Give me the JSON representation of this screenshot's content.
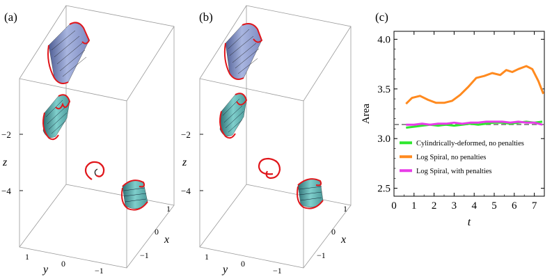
{
  "panels": {
    "a": {
      "label": "(a)",
      "axes": {
        "x": "x",
        "y": "y",
        "z": "z"
      },
      "ticks": {
        "z": [
          "−2",
          "−4"
        ],
        "x": [
          "1",
          "0",
          "−1"
        ],
        "y": [
          "1",
          "0",
          "−1"
        ]
      }
    },
    "b": {
      "label": "(b)",
      "axes": {
        "x": "x",
        "y": "y",
        "z": "z"
      },
      "ticks": {
        "z": [
          "−2",
          "−4"
        ],
        "x": [
          "1",
          "0",
          "−1"
        ],
        "y": [
          "1",
          "0",
          "−1"
        ]
      }
    },
    "c": {
      "label": "(c)"
    }
  },
  "colors": {
    "surface_blue": "#a9b6e0",
    "surface_teal": "#76c6c4",
    "boundary_red": "#e0161b",
    "green": "#2ee82e",
    "orange": "#ff8a1f",
    "magenta": "#e83ce8",
    "reference_dash": "#777777"
  },
  "chart_data": {
    "type": "line",
    "xlabel": "t",
    "ylabel": "Area",
    "xlim": [
      0,
      7.5
    ],
    "ylim": [
      2.42,
      4.08
    ],
    "xticks": [
      0,
      1,
      2,
      3,
      4,
      5,
      6,
      7
    ],
    "yticks": [
      2.5,
      3.0,
      3.5,
      4.0
    ],
    "ytick_labels": [
      "2.5",
      "3.0",
      "3.5",
      "4.0"
    ],
    "reference_line": 3.14159,
    "legend_position": "bottom-left",
    "series": [
      {
        "name": "Cylindrically-deformed, no penalties",
        "color": "#2ee82e",
        "x": [
          0.6,
          1.0,
          1.4,
          1.8,
          2.2,
          2.6,
          3.0,
          3.4,
          3.8,
          4.2,
          4.6,
          5.0,
          5.4,
          5.8,
          6.2,
          6.6,
          7.0,
          7.4
        ],
        "y": [
          3.11,
          3.12,
          3.13,
          3.14,
          3.13,
          3.14,
          3.13,
          3.14,
          3.15,
          3.14,
          3.15,
          3.16,
          3.16,
          3.15,
          3.16,
          3.17,
          3.16,
          3.17
        ]
      },
      {
        "name": "Log Spiral, no penalties",
        "color": "#ff8a1f",
        "x": [
          0.6,
          0.9,
          1.3,
          1.7,
          2.1,
          2.5,
          2.9,
          3.3,
          3.7,
          4.1,
          4.5,
          4.9,
          5.3,
          5.6,
          5.9,
          6.2,
          6.6,
          6.9,
          7.2,
          7.45
        ],
        "y": [
          3.35,
          3.41,
          3.43,
          3.39,
          3.36,
          3.36,
          3.38,
          3.44,
          3.52,
          3.61,
          3.63,
          3.66,
          3.64,
          3.69,
          3.67,
          3.7,
          3.73,
          3.7,
          3.58,
          3.45
        ]
      },
      {
        "name": "Log Spiral, with penalties",
        "color": "#e83ce8",
        "x": [
          0.6,
          1.0,
          1.4,
          1.8,
          2.2,
          2.6,
          3.0,
          3.4,
          3.8,
          4.2,
          4.6,
          5.0,
          5.4,
          5.8,
          6.2,
          6.6,
          7.0,
          7.4
        ],
        "y": [
          3.14,
          3.14,
          3.15,
          3.14,
          3.15,
          3.15,
          3.16,
          3.15,
          3.16,
          3.16,
          3.17,
          3.17,
          3.17,
          3.16,
          3.17,
          3.16,
          3.16,
          3.14
        ]
      }
    ]
  }
}
